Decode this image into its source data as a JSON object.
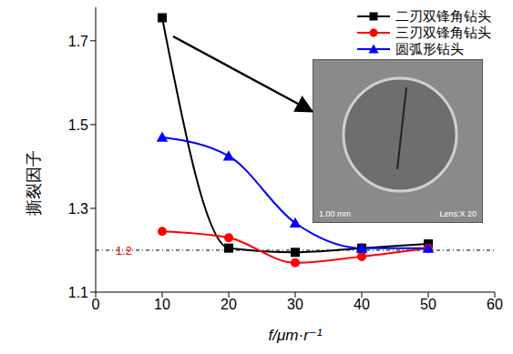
{
  "chart_data": {
    "type": "line",
    "x_label": "f/μm·r⁻¹",
    "y_label": "撕裂因子",
    "x": [
      10,
      20,
      30,
      40,
      50
    ],
    "xlim": [
      0,
      60
    ],
    "xticks": [
      0,
      10,
      20,
      30,
      40,
      50,
      60
    ],
    "ylim": [
      1.1,
      1.78
    ],
    "yticks": [
      1.1,
      1.3,
      1.5,
      1.7
    ],
    "grid": false,
    "legend": "upper right",
    "reference_line": {
      "value": 1.2,
      "label": "1.2",
      "color": "#ff0000"
    },
    "inset": {
      "scale_label": "1.00 mm",
      "lens_label": "Lens:X 20"
    },
    "series": [
      {
        "name": "二刃双锋角钻头",
        "color": "#000000",
        "marker": "square",
        "line_style": "smooth",
        "values": [
          1.755,
          1.205,
          1.195,
          1.205,
          1.215
        ]
      },
      {
        "name": "三刃双锋角钻头",
        "color": "#ff0000",
        "marker": "circle",
        "line_style": "smooth",
        "values": [
          1.245,
          1.23,
          1.17,
          1.185,
          1.205
        ]
      },
      {
        "name": "圆弧形钻头",
        "color": "#0000ff",
        "marker": "triangle",
        "line_style": "smooth",
        "values": [
          1.47,
          1.425,
          1.265,
          1.205,
          1.205
        ]
      }
    ]
  }
}
